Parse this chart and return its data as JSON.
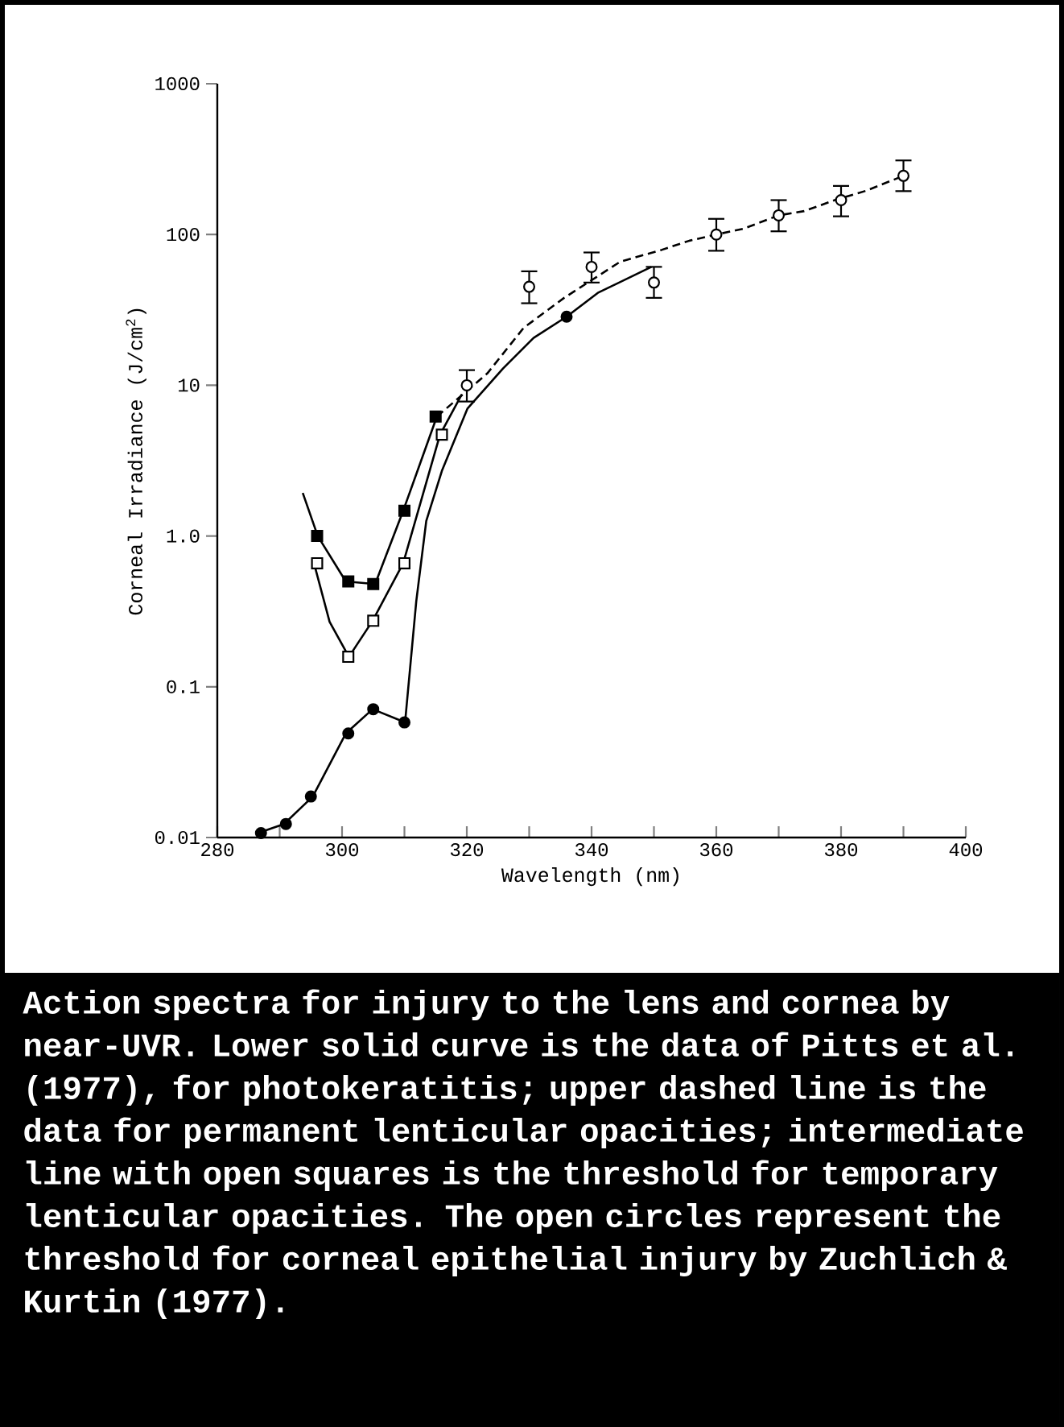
{
  "chart_data": {
    "type": "line",
    "xlabel": "Wavelength (nm)",
    "ylabel": "Corneal Irradiance (J/cm$^{2}$)",
    "log": "y",
    "xlim": [
      280,
      400
    ],
    "ylim": [
      0.01,
      1000
    ],
    "xticks": [
      280,
      {
        "value": 290,
        "label": null
      },
      300,
      {
        "value": 310,
        "label": null
      },
      320,
      {
        "value": 330,
        "label": null
      },
      340,
      {
        "value": 350,
        "label": null
      },
      360,
      {
        "value": 370,
        "label": null
      },
      380,
      {
        "value": 390,
        "label": null
      },
      400
    ],
    "yticks": [
      {
        "value": 0.01,
        "label": "0.01"
      },
      {
        "value": 0.1,
        "label": "0.1"
      },
      {
        "value": 1,
        "label": "1.0"
      },
      10,
      100,
      1000
    ],
    "series": [
      {
        "color": "#000000",
        "line_style": "solid",
        "x": [
          286.5,
          290.7,
          295.3,
          300.6,
          304.9,
          310.1,
          311.9,
          313.5,
          316,
          320.1,
          325.8,
          330.7,
          336,
          341,
          349.6
        ],
        "values": [
          0.0107,
          0.0123,
          0.0187,
          0.049,
          0.071,
          0.058,
          0.37,
          1.26,
          2.7,
          7.0,
          12.9,
          20.6,
          28.5,
          41,
          61
        ]
      },
      {
        "type": "scatter",
        "color": "#000000",
        "marker": "circle",
        "x": [
          287,
          291,
          295,
          301,
          305,
          310,
          336
        ],
        "values": [
          0.0107,
          0.0123,
          0.0187,
          0.049,
          0.071,
          0.058,
          28.5
        ]
      },
      {
        "color": "#000000",
        "line_style": "solid",
        "x": [
          293.7,
          296.1,
          300.6,
          305.3,
          309.8,
          315.2
        ],
        "values": [
          1.93,
          1.0,
          0.5,
          0.48,
          1.47,
          6.2
        ]
      },
      {
        "color": "#000000",
        "line_style": "dashed",
        "x": [
          315.2,
          323.3,
          329.1,
          335.6,
          344.6,
          351.2,
          355.7,
          360,
          364.3,
          370,
          374.1,
          379,
          384,
          390
        ],
        "values": [
          6.2,
          12,
          24,
          38,
          66,
          79,
          91,
          100,
          109,
          134,
          143,
          169,
          195,
          245
        ]
      },
      {
        "type": "scatter",
        "color": "#000000",
        "marker": "square",
        "x": [
          296,
          301,
          305,
          310,
          315
        ],
        "values": [
          1.0,
          0.5,
          0.48,
          1.47,
          6.2
        ]
      },
      {
        "color": "#000000",
        "line_style": "solid",
        "x": [
          295.5,
          298,
          301.1,
          304.9,
          309.8,
          315.7,
          319.2
        ],
        "values": [
          0.66,
          0.27,
          0.158,
          0.274,
          0.66,
          4.7,
          8.7
        ]
      },
      {
        "type": "scatter",
        "color": "#ffffff",
        "marker": "square",
        "x": [
          296,
          301,
          305,
          310,
          316
        ],
        "values": [
          0.66,
          0.158,
          0.274,
          0.66,
          4.7
        ]
      },
      {
        "type": "scatter",
        "color": "#ffffff",
        "marker": "circle",
        "x": [
          320,
          330,
          340,
          350,
          360,
          370,
          380,
          390
        ],
        "values": [
          10,
          45,
          61,
          48,
          100,
          134,
          169,
          245
        ],
        "errors": [
          [
            7.8,
            12.6
          ],
          [
            35,
            57
          ],
          [
            48,
            76
          ],
          [
            38,
            61
          ],
          [
            78,
            127
          ],
          [
            105,
            169
          ],
          [
            132,
            210
          ],
          [
            194,
            310
          ]
        ]
      }
    ],
    "annotations": [
      "Action spectra for injury to the lens and cornea by near-UVR. Lower solid curve is the data of Pitts et al. (1977), for photokeratitis; upper dashed line is the data for permanent lenticular opacities; intermediate line with open squares is the threshold for temporary lenticular opacities. The open circles represent the threshold for corneal epithelial injury by Zuchlich & Kurtin (1977)."
    ]
  }
}
